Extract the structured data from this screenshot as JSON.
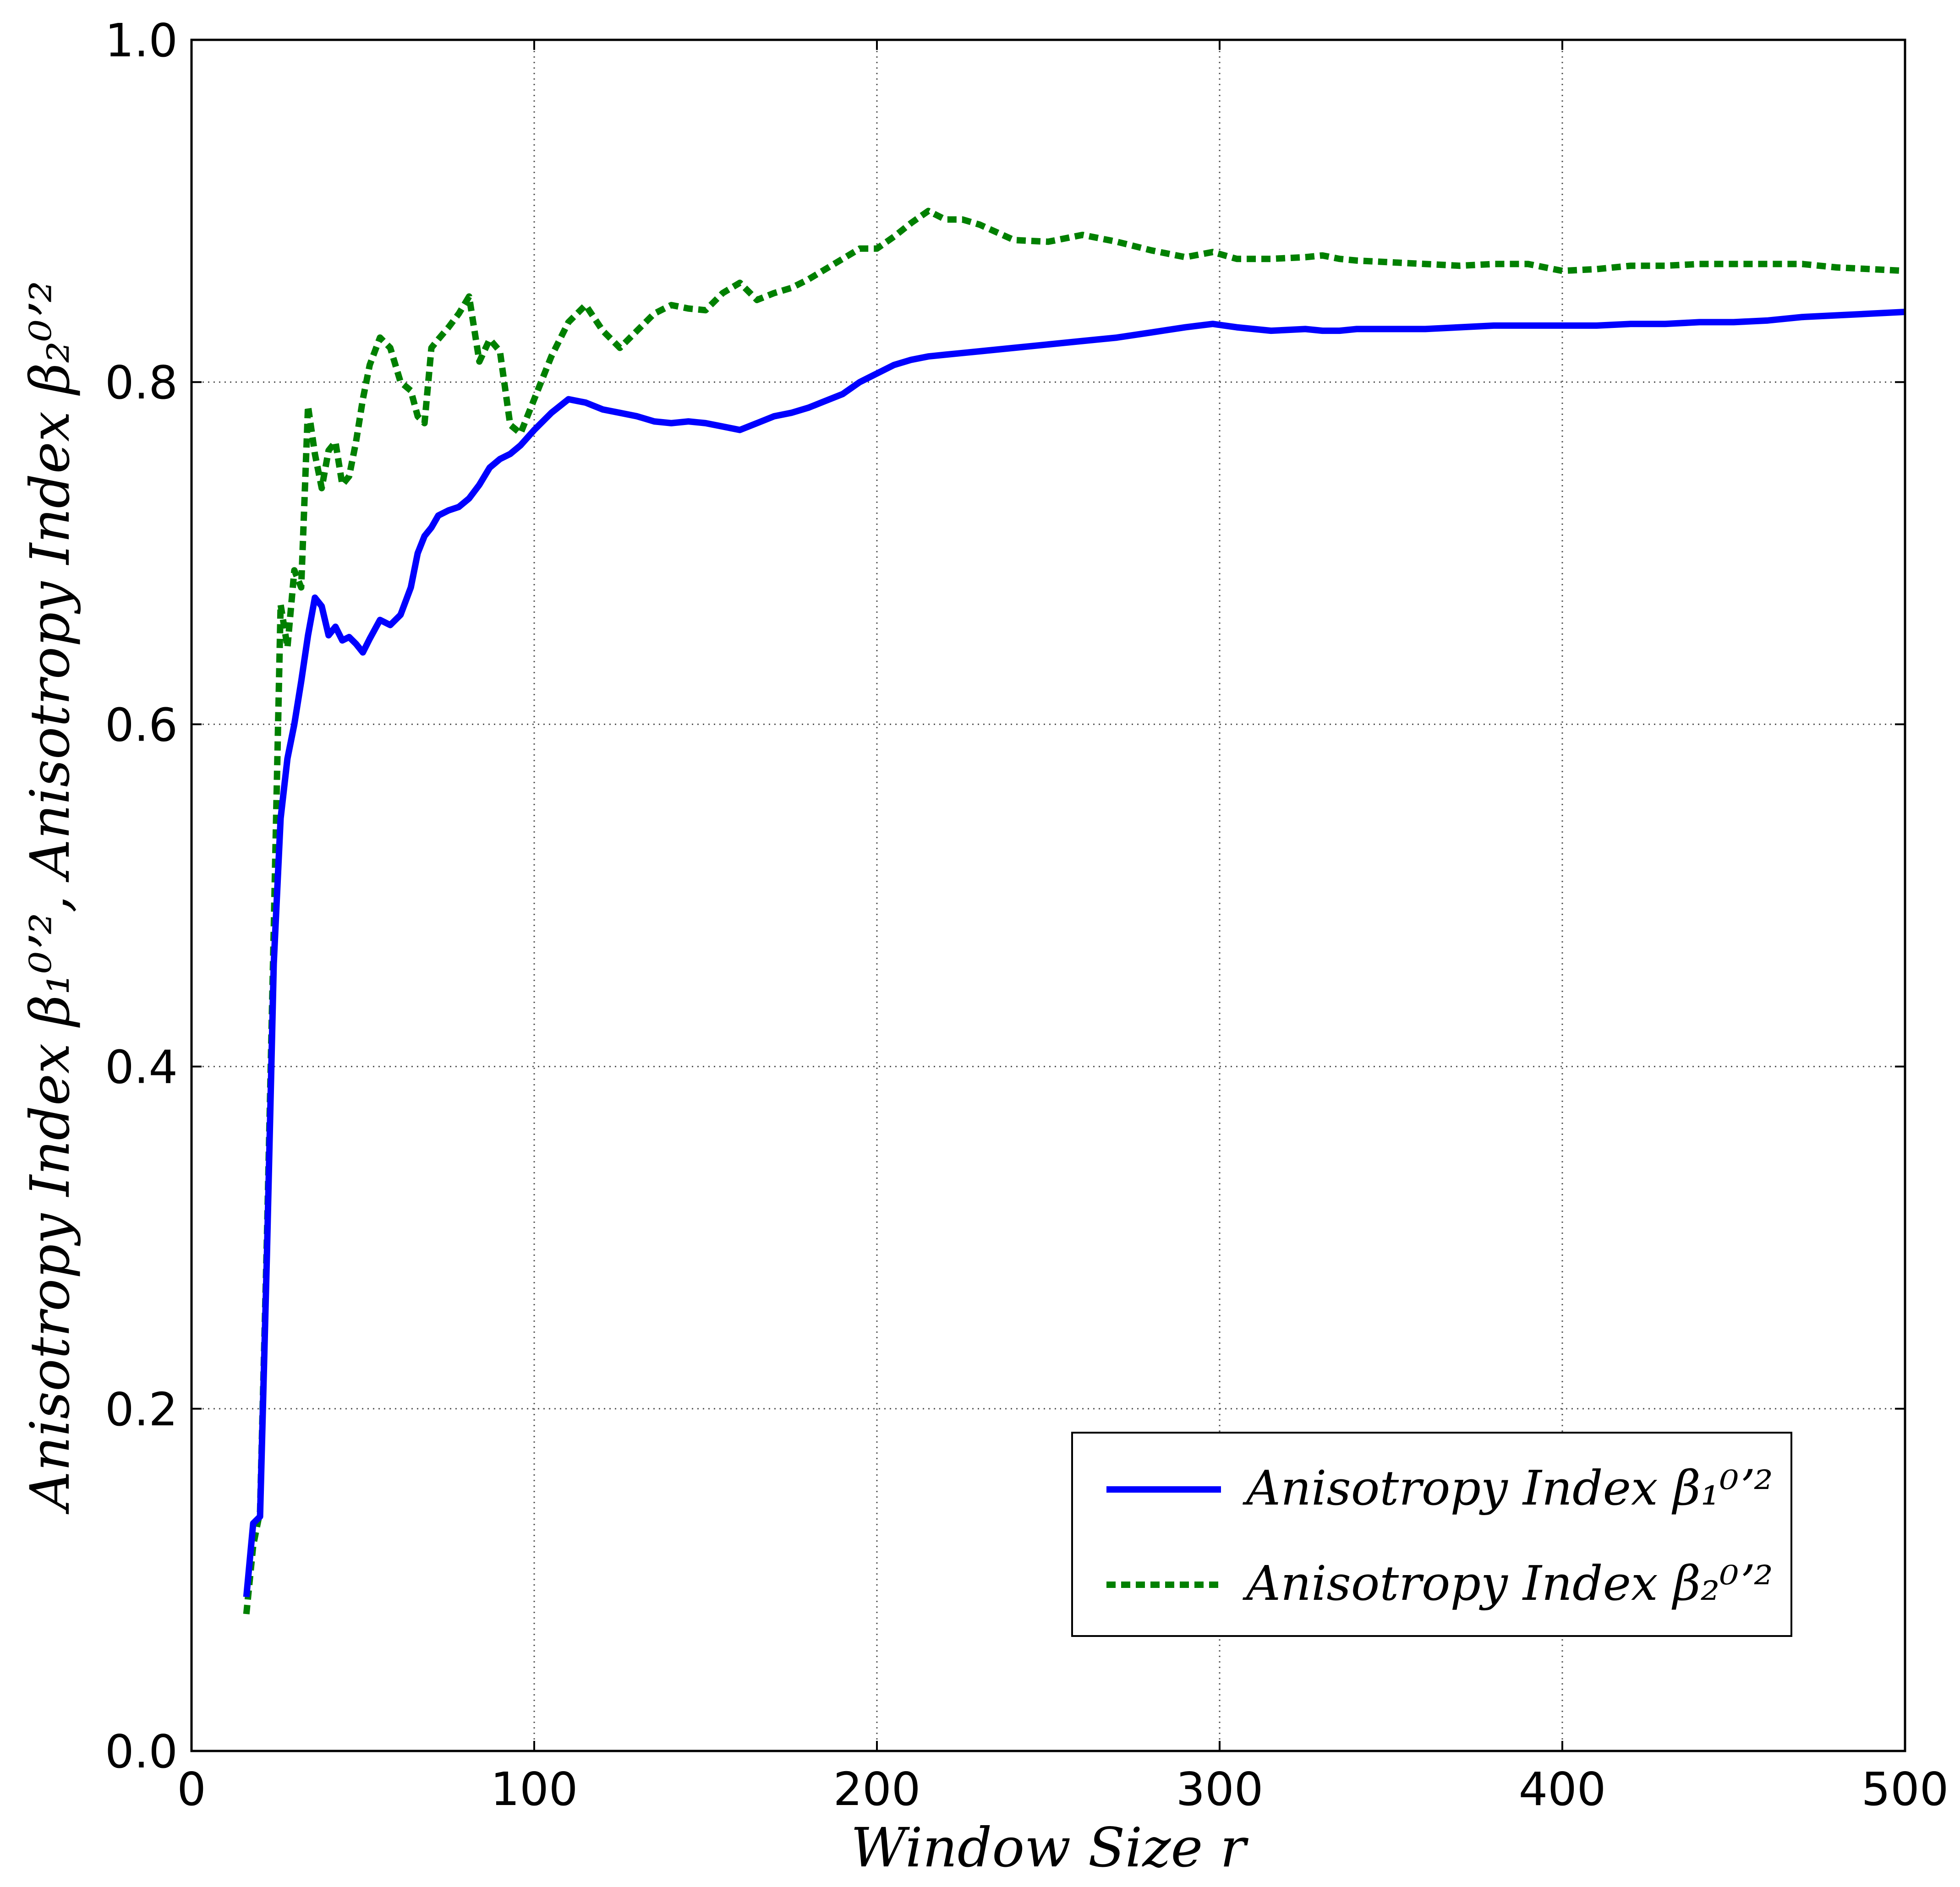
{
  "chart_data": {
    "type": "line",
    "title": "",
    "xlabel": "Window Size r",
    "ylabel": "Anisotropy Index β₁⁰ʼ², Anisotropy Index β₂⁰ʼ²",
    "xlim": [
      0,
      500
    ],
    "ylim": [
      0.0,
      1.0
    ],
    "xticks": [
      "0",
      "100",
      "200",
      "300",
      "400",
      "500"
    ],
    "yticks": [
      "0.0",
      "0.2",
      "0.4",
      "0.6",
      "0.8",
      "1.0"
    ],
    "grid": true,
    "legend_position": "lower-right",
    "series": [
      {
        "name": "Anisotropy Index β₁⁰ʼ²",
        "color": "#0000ff",
        "style": "solid",
        "x": [
          16,
          18,
          20,
          22,
          24,
          26,
          28,
          30,
          32,
          34,
          36,
          38,
          40,
          42,
          44,
          46,
          48,
          50,
          52,
          55,
          58,
          61,
          64,
          66,
          68,
          70,
          72,
          75,
          78,
          81,
          84,
          87,
          90,
          93,
          96,
          100,
          105,
          110,
          115,
          120,
          125,
          130,
          135,
          140,
          145,
          150,
          155,
          160,
          165,
          170,
          175,
          180,
          185,
          190,
          195,
          200,
          205,
          210,
          215,
          220,
          225,
          230,
          240,
          250,
          260,
          270,
          280,
          290,
          298,
          305,
          315,
          325,
          330,
          335,
          340,
          350,
          360,
          370,
          380,
          390,
          400,
          410,
          420,
          430,
          440,
          450,
          460,
          470,
          480,
          490,
          500
        ],
        "y": [
          0.09,
          0.133,
          0.137,
          0.29,
          0.46,
          0.545,
          0.58,
          0.6,
          0.625,
          0.652,
          0.674,
          0.669,
          0.652,
          0.657,
          0.649,
          0.651,
          0.647,
          0.642,
          0.65,
          0.661,
          0.658,
          0.664,
          0.68,
          0.7,
          0.71,
          0.715,
          0.722,
          0.725,
          0.727,
          0.732,
          0.74,
          0.75,
          0.755,
          0.758,
          0.763,
          0.772,
          0.782,
          0.79,
          0.788,
          0.784,
          0.782,
          0.78,
          0.777,
          0.776,
          0.777,
          0.776,
          0.774,
          0.772,
          0.776,
          0.78,
          0.782,
          0.785,
          0.789,
          0.793,
          0.8,
          0.805,
          0.81,
          0.813,
          0.815,
          0.816,
          0.817,
          0.818,
          0.82,
          0.822,
          0.824,
          0.826,
          0.829,
          0.832,
          0.834,
          0.832,
          0.83,
          0.831,
          0.83,
          0.83,
          0.831,
          0.831,
          0.831,
          0.832,
          0.833,
          0.833,
          0.833,
          0.833,
          0.834,
          0.834,
          0.835,
          0.835,
          0.836,
          0.838,
          0.839,
          0.84,
          0.841
        ]
      },
      {
        "name": "Anisotropy Index β₂⁰ʼ²",
        "color": "#008000",
        "style": "dotted",
        "x": [
          16,
          18,
          20,
          22,
          24,
          26,
          28,
          30,
          32,
          34,
          36,
          38,
          40,
          42,
          44,
          46,
          48,
          50,
          52,
          55,
          58,
          61,
          64,
          66,
          68,
          70,
          72,
          75,
          78,
          81,
          84,
          87,
          90,
          93,
          96,
          100,
          105,
          110,
          115,
          120,
          125,
          130,
          135,
          140,
          145,
          150,
          155,
          160,
          165,
          170,
          175,
          180,
          185,
          190,
          195,
          200,
          205,
          210,
          215,
          220,
          225,
          230,
          240,
          250,
          260,
          270,
          280,
          290,
          298,
          305,
          315,
          325,
          330,
          335,
          340,
          350,
          360,
          370,
          380,
          390,
          400,
          410,
          420,
          430,
          440,
          450,
          460,
          470,
          480,
          490,
          500
        ],
        "y": [
          0.08,
          0.12,
          0.14,
          0.3,
          0.48,
          0.67,
          0.645,
          0.69,
          0.68,
          0.786,
          0.758,
          0.738,
          0.76,
          0.765,
          0.74,
          0.745,
          0.765,
          0.79,
          0.81,
          0.826,
          0.82,
          0.8,
          0.795,
          0.78,
          0.776,
          0.82,
          0.825,
          0.832,
          0.84,
          0.85,
          0.812,
          0.825,
          0.818,
          0.775,
          0.77,
          0.79,
          0.815,
          0.835,
          0.845,
          0.83,
          0.82,
          0.83,
          0.84,
          0.845,
          0.843,
          0.842,
          0.852,
          0.858,
          0.848,
          0.852,
          0.855,
          0.86,
          0.866,
          0.872,
          0.878,
          0.878,
          0.885,
          0.893,
          0.9,
          0.895,
          0.895,
          0.892,
          0.883,
          0.882,
          0.886,
          0.882,
          0.877,
          0.873,
          0.876,
          0.872,
          0.872,
          0.873,
          0.874,
          0.872,
          0.871,
          0.87,
          0.869,
          0.868,
          0.869,
          0.869,
          0.865,
          0.866,
          0.868,
          0.868,
          0.869,
          0.869,
          0.869,
          0.869,
          0.867,
          0.866,
          0.865
        ]
      }
    ]
  }
}
